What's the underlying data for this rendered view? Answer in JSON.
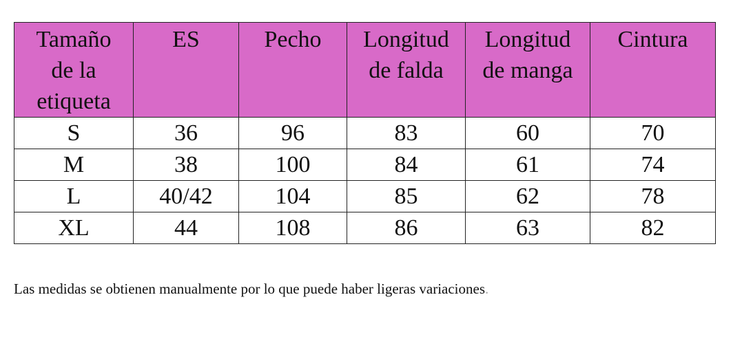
{
  "table": {
    "headers": [
      "Tamaño de la etiqueta",
      "ES",
      "Pecho",
      "Longitud de falda",
      "Longitud de manga",
      "Cintura"
    ],
    "rows": [
      [
        "S",
        "36",
        "96",
        "83",
        "60",
        "70"
      ],
      [
        "M",
        "38",
        "100",
        "84",
        "61",
        "74"
      ],
      [
        "L",
        "40/42",
        "104",
        "85",
        "62",
        "78"
      ],
      [
        "XL",
        "44",
        "108",
        "86",
        "63",
        "82"
      ]
    ]
  },
  "note": "Las medidas se obtienen manualmente por lo que puede haber ligeras variaciones",
  "note_end": ".",
  "colors": {
    "header_bg": "#d86ac8"
  }
}
